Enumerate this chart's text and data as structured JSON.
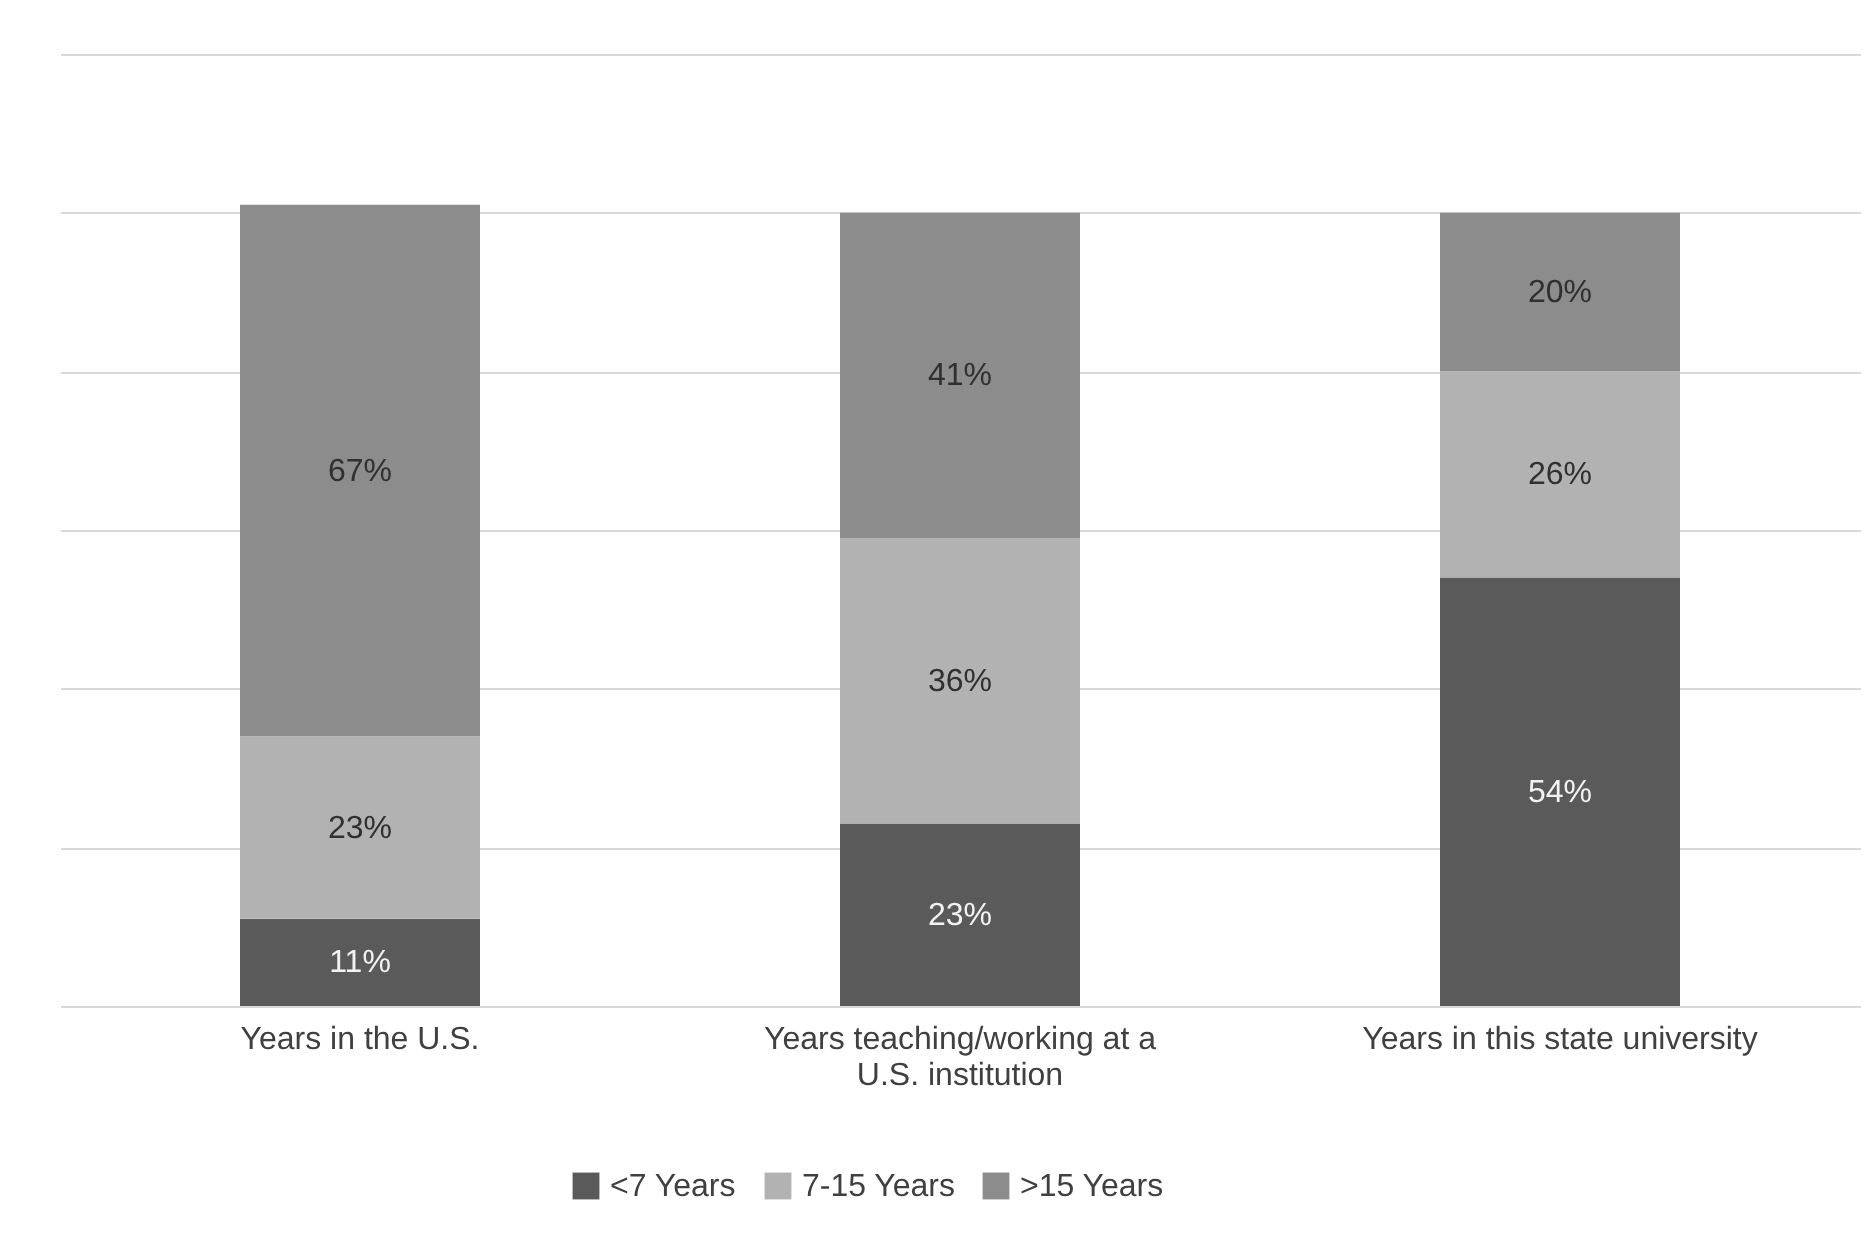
{
  "chart_data": {
    "type": "bar",
    "stacked": true,
    "categories": [
      "Years in the U.S.",
      "Years teaching/working at a U.S. institution",
      "Years in this state university"
    ],
    "series": [
      {
        "name": "<7 Years",
        "color": "#5a5a5a",
        "values": [
          11,
          23,
          54
        ],
        "value_labels": [
          "11%",
          "23%",
          "54%"
        ]
      },
      {
        "name": "7-15 Years",
        "color": "#b2b2b2",
        "values": [
          23,
          36,
          26
        ],
        "value_labels": [
          "23%",
          "36%",
          "26%"
        ]
      },
      {
        "name": ">15 Years",
        "color": "#8c8c8c",
        "values": [
          67,
          41,
          20
        ],
        "value_labels": [
          "67%",
          "41%",
          "20%"
        ]
      }
    ],
    "ylim": [
      0,
      120
    ],
    "yticks": [
      0,
      20,
      40,
      60,
      80,
      100,
      120
    ],
    "grid": "y",
    "tick_labels": "x",
    "legend": "bottom"
  }
}
